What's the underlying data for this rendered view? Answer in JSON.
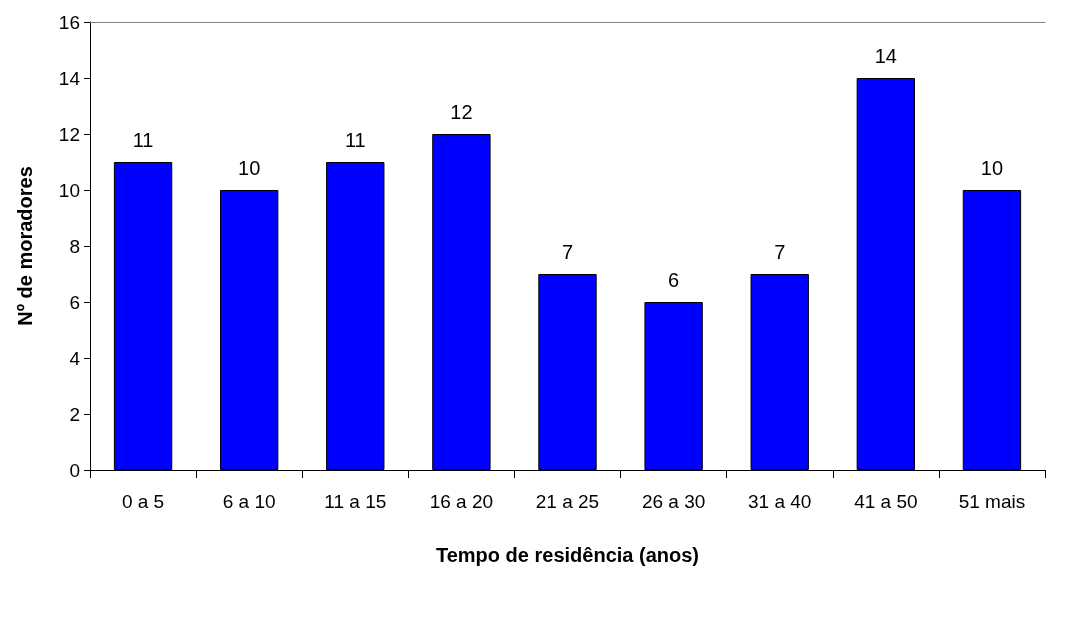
{
  "chart_data": {
    "type": "bar",
    "xlabel": "Tempo de residência (anos)",
    "ylabel": "Nº de moradores",
    "categories": [
      "0 a 5",
      "6 a 10",
      "11 a 15",
      "16 a 20",
      "21 a 25",
      "26 a 30",
      "31 a 40",
      "41 a 50",
      "51 mais"
    ],
    "values": [
      11,
      10,
      11,
      12,
      7,
      6,
      7,
      14,
      10
    ],
    "color": "#0000ff",
    "ylim": [
      0,
      16
    ],
    "yticks": [
      0,
      2,
      4,
      6,
      8,
      10,
      12,
      14,
      16
    ],
    "grid": false,
    "data_labels": true
  }
}
